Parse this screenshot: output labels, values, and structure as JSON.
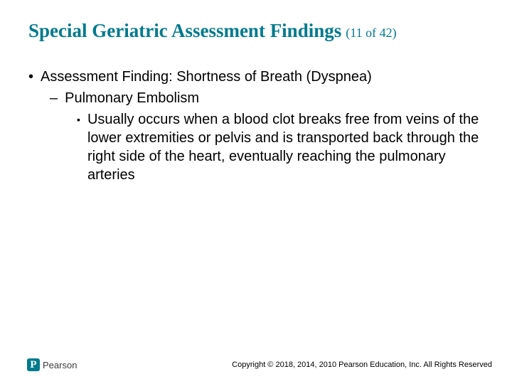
{
  "slide": {
    "title": "Special Geriatric Assessment Findings",
    "counter": "(11 of 42)",
    "title_color": "#007a8d",
    "title_fontsize": 27,
    "counter_fontsize": 18,
    "body_fontsize": 20,
    "body_color": "#000000",
    "background_color": "#ffffff",
    "bullets": {
      "level1_marker": "•",
      "level1_text": "Assessment Finding: Shortness of Breath (Dyspnea)",
      "level2_marker": "–",
      "level2_text": "Pulmonary Embolism",
      "level3_marker": "▪",
      "level3_text": "Usually occurs when a blood clot breaks free from veins of the lower extremities or pelvis and is transported back through the right side of the heart, eventually reaching the pulmonary arteries"
    }
  },
  "footer": {
    "logo_letter": "P",
    "logo_text": "Pearson",
    "logo_badge_color": "#007a8d",
    "copyright": "Copyright © 2018, 2014, 2010 Pearson Education, Inc. All Rights Reserved"
  }
}
